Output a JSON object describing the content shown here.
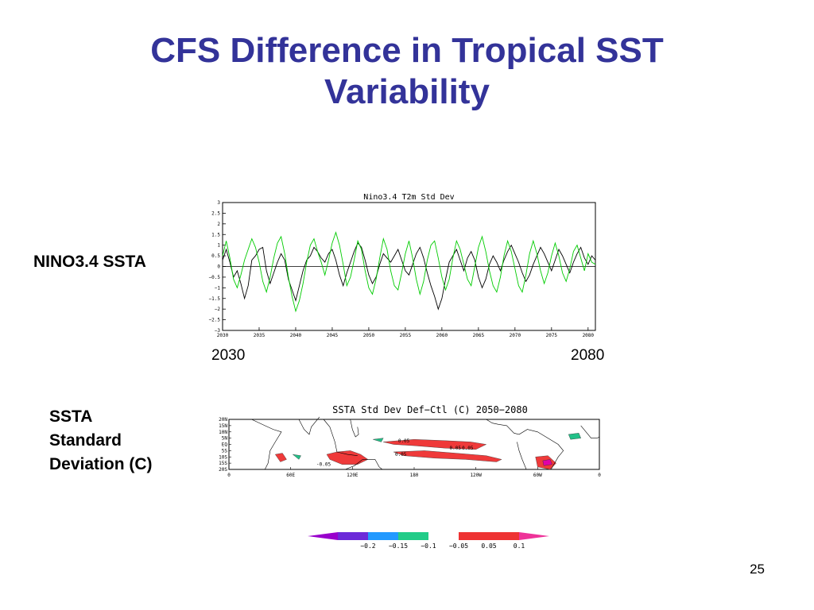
{
  "slide": {
    "title_line1": "CFS Difference in Tropical SST",
    "title_line2": "Variability",
    "label_nino": "NINO3.4 SSTA",
    "label_ssta_1": "SSTA",
    "label_ssta_2": "Standard",
    "label_ssta_3": "Deviation (C)",
    "year_start": "2030",
    "year_end": "2080",
    "page_number": "25"
  },
  "chart_data": [
    {
      "type": "line",
      "title": "Nino3.4 T2m Std Dev",
      "x_tick_labels": [
        "2030",
        "2035",
        "2040",
        "2045",
        "2050",
        "2055",
        "2060",
        "2065",
        "2070",
        "2075",
        "2080"
      ],
      "y_tick_labels": [
        "3",
        "2.5",
        "2",
        "1.5",
        "1",
        "0.5",
        "0",
        "−0.5",
        "−1",
        "−1.5",
        "−2",
        "−2.5",
        "−3"
      ],
      "xlim": [
        2030,
        2081
      ],
      "ylim": [
        -3,
        3
      ],
      "grid": false,
      "zero_line": true,
      "series": [
        {
          "color": "#000000",
          "x": [
            2030,
            2030.5,
            2031,
            2031.5,
            2032,
            2032.5,
            2033,
            2033.5,
            2034,
            2034.5,
            2035,
            2035.5,
            2036,
            2036.5,
            2037,
            2037.5,
            2038,
            2038.5,
            2039,
            2039.5,
            2040,
            2040.5,
            2041,
            2041.5,
            2042,
            2042.5,
            2043,
            2043.5,
            2044,
            2044.5,
            2045,
            2045.5,
            2046,
            2046.5,
            2047,
            2047.5,
            2048,
            2048.5,
            2049,
            2049.5,
            2050,
            2050.5,
            2051,
            2051.5,
            2052,
            2052.5,
            2053,
            2053.5,
            2054,
            2054.5,
            2055,
            2055.5,
            2056,
            2056.5,
            2057,
            2057.5,
            2058,
            2058.5,
            2059,
            2059.5,
            2060,
            2060.5,
            2061,
            2061.5,
            2062,
            2062.5,
            2063,
            2063.5,
            2064,
            2064.5,
            2065,
            2065.5,
            2066,
            2066.5,
            2067,
            2067.5,
            2068,
            2068.5,
            2069,
            2069.5,
            2070,
            2070.5,
            2071,
            2071.5,
            2072,
            2072.5,
            2073,
            2073.5,
            2074,
            2074.5,
            2075,
            2075.5,
            2076,
            2076.5,
            2077,
            2077.5,
            2078,
            2078.5,
            2079,
            2079.5,
            2080,
            2080.5,
            2081
          ],
          "y": [
            0.3,
            0.8,
            0.2,
            -0.5,
            -0.2,
            -0.8,
            -1.5,
            -0.9,
            0.3,
            0.5,
            0.8,
            0.9,
            -0.2,
            -0.8,
            -0.3,
            0.2,
            0.6,
            0.3,
            -0.6,
            -1.1,
            -1.6,
            -0.9,
            -0.2,
            0.3,
            0.5,
            0.9,
            0.7,
            0.4,
            0.2,
            0.6,
            0.8,
            0.3,
            -0.4,
            -0.9,
            -0.3,
            0.2,
            0.7,
            1.1,
            0.9,
            0.3,
            -0.4,
            -0.8,
            -0.5,
            0.1,
            0.6,
            0.4,
            0.2,
            0.5,
            0.8,
            0.3,
            -0.2,
            -0.4,
            0.1,
            0.6,
            0.9,
            0.4,
            -0.3,
            -0.9,
            -1.4,
            -2.0,
            -1.5,
            -0.6,
            0.2,
            0.5,
            0.8,
            0.3,
            -0.2,
            0.4,
            0.7,
            0.3,
            -0.5,
            -1.0,
            -0.6,
            0.1,
            0.5,
            0.2,
            -0.2,
            0.3,
            0.7,
            1.0,
            0.6,
            0.2,
            -0.3,
            -0.7,
            -0.4,
            0.1,
            0.5,
            0.9,
            0.6,
            0.2,
            -0.2,
            0.3,
            0.8,
            0.5,
            0.1,
            -0.3,
            0.2,
            0.6,
            0.9,
            0.4,
            0.1,
            0.5,
            0.3
          ]
        },
        {
          "color": "#00cc00",
          "x": [
            2030,
            2030.5,
            2031,
            2031.5,
            2032,
            2032.5,
            2033,
            2033.5,
            2034,
            2034.5,
            2035,
            2035.5,
            2036,
            2036.5,
            2037,
            2037.5,
            2038,
            2038.5,
            2039,
            2039.5,
            2040,
            2040.5,
            2041,
            2041.5,
            2042,
            2042.5,
            2043,
            2043.5,
            2044,
            2044.5,
            2045,
            2045.5,
            2046,
            2046.5,
            2047,
            2047.5,
            2048,
            2048.5,
            2049,
            2049.5,
            2050,
            2050.5,
            2051,
            2051.5,
            2052,
            2052.5,
            2053,
            2053.5,
            2054,
            2054.5,
            2055,
            2055.5,
            2056,
            2056.5,
            2057,
            2057.5,
            2058,
            2058.5,
            2059,
            2059.5,
            2060,
            2060.5,
            2061,
            2061.5,
            2062,
            2062.5,
            2063,
            2063.5,
            2064,
            2064.5,
            2065,
            2065.5,
            2066,
            2066.5,
            2067,
            2067.5,
            2068,
            2068.5,
            2069,
            2069.5,
            2070,
            2070.5,
            2071,
            2071.5,
            2072,
            2072.5,
            2073,
            2073.5,
            2074,
            2074.5,
            2075,
            2075.5,
            2076,
            2076.5,
            2077,
            2077.5,
            2078,
            2078.5,
            2079,
            2079.5,
            2080,
            2080.5,
            2081
          ],
          "y": [
            0.5,
            1.2,
            0.4,
            -0.6,
            -1.0,
            -0.4,
            0.3,
            0.8,
            1.3,
            0.9,
            0.2,
            -0.7,
            -1.2,
            -0.5,
            0.4,
            1.1,
            1.4,
            0.6,
            -0.5,
            -1.4,
            -2.1,
            -1.6,
            -0.8,
            0.2,
            1.0,
            1.3,
            0.7,
            0.2,
            -0.4,
            0.3,
            1.1,
            1.6,
            1.0,
            0.1,
            -0.9,
            -0.5,
            0.3,
            1.2,
            0.8,
            -0.2,
            -1.0,
            -1.3,
            -0.6,
            0.4,
            1.3,
            0.8,
            -0.2,
            -0.9,
            -1.1,
            -0.3,
            0.6,
            1.2,
            0.4,
            -0.6,
            -1.3,
            -0.7,
            0.3,
            1.0,
            1.2,
            0.4,
            -0.5,
            -1.1,
            -0.6,
            0.4,
            1.2,
            0.8,
            0.1,
            -0.6,
            -0.9,
            0.0,
            0.9,
            1.4,
            0.7,
            -0.2,
            -0.9,
            -1.2,
            -0.5,
            0.5,
            1.2,
            0.7,
            -0.1,
            -0.9,
            -1.2,
            -0.4,
            0.6,
            1.2,
            0.6,
            -0.2,
            -0.8,
            -0.3,
            0.5,
            1.1,
            0.5,
            -0.3,
            -0.7,
            -0.1,
            0.7,
            1.0,
            0.4,
            -0.2,
            0.6,
            0.2,
            0.1
          ]
        }
      ]
    },
    {
      "type": "heatmap",
      "title": "SSTA Std Dev Def−Ctl (C) 2050−2080",
      "x_tick_labels": [
        "0",
        "60E",
        "120E",
        "180",
        "120W",
        "60W",
        "0"
      ],
      "y_tick_labels": [
        "20N",
        "15N",
        "10N",
        "5N",
        "EQ",
        "5S",
        "10S",
        "15S",
        "20S"
      ],
      "xlim": [
        0,
        360
      ],
      "ylim": [
        -20,
        20
      ],
      "contour_labels": [
        {
          "text": "0.05",
          "lon": 170,
          "lat": 3
        },
        {
          "text": "0.05",
          "lon": 220,
          "lat": -3
        },
        {
          "text": "0.05",
          "lon": 232,
          "lat": -3
        },
        {
          "text": "0.05",
          "lon": 167,
          "lat": -8
        },
        {
          "text": "-0.05",
          "lon": 92,
          "lat": -16
        }
      ],
      "anomaly_regions": [
        {
          "lon": [
            150,
            180,
            210,
            235,
            250,
            240,
            210,
            180,
            160,
            150
          ],
          "lat": [
            2,
            4,
            3,
            2,
            0,
            -4,
            -3,
            -1,
            0,
            2
          ],
          "color": "#ef3a3a"
        },
        {
          "lon": [
            160,
            190,
            220,
            250,
            265,
            260,
            230,
            200,
            170,
            160
          ],
          "lat": [
            -6,
            -5,
            -7,
            -9,
            -12,
            -14,
            -12,
            -11,
            -9,
            -6
          ],
          "color": "#ef3a3a"
        },
        {
          "lon": [
            95,
            105,
            118,
            128,
            135,
            125,
            110,
            98,
            95
          ],
          "lat": [
            -8,
            -6,
            -5,
            -8,
            -12,
            -16,
            -16,
            -12,
            -8
          ],
          "color": "#ef3a3a"
        },
        {
          "lon": [
            45,
            52,
            56,
            50,
            45
          ],
          "lat": [
            -8,
            -7,
            -12,
            -14,
            -8
          ],
          "color": "#ef3a3a"
        },
        {
          "lon": [
            298,
            310,
            318,
            312,
            300,
            298
          ],
          "lat": [
            -10,
            -9,
            -15,
            -20,
            -18,
            -10
          ],
          "color": "#ef3a3a"
        },
        {
          "lon": [
            305,
            312,
            314,
            306,
            305
          ],
          "lat": [
            -13,
            -12,
            -16,
            -17,
            -13
          ],
          "color": "#e000a8"
        },
        {
          "lon": [
            62,
            70,
            68,
            62
          ],
          "lat": [
            -8,
            -9,
            -12,
            -8
          ],
          "color": "#22c088"
        },
        {
          "lon": [
            140,
            150,
            148,
            140
          ],
          "lat": [
            4,
            5,
            2,
            4
          ],
          "color": "#22c088"
        },
        {
          "lon": [
            330,
            340,
            342,
            332,
            330
          ],
          "lat": [
            8,
            9,
            5,
            4,
            8
          ],
          "color": "#22c088"
        }
      ]
    }
  ],
  "colorbar": {
    "labels": [
      "−0.2",
      "−0.15",
      "−0.1",
      "−0.05",
      "0.05",
      "0.1"
    ],
    "colors": [
      "#9900cc",
      "#6c2ad9",
      "#2299ff",
      "#22cc88",
      "#ffffff",
      "#ee3333",
      "#ee3399"
    ]
  }
}
